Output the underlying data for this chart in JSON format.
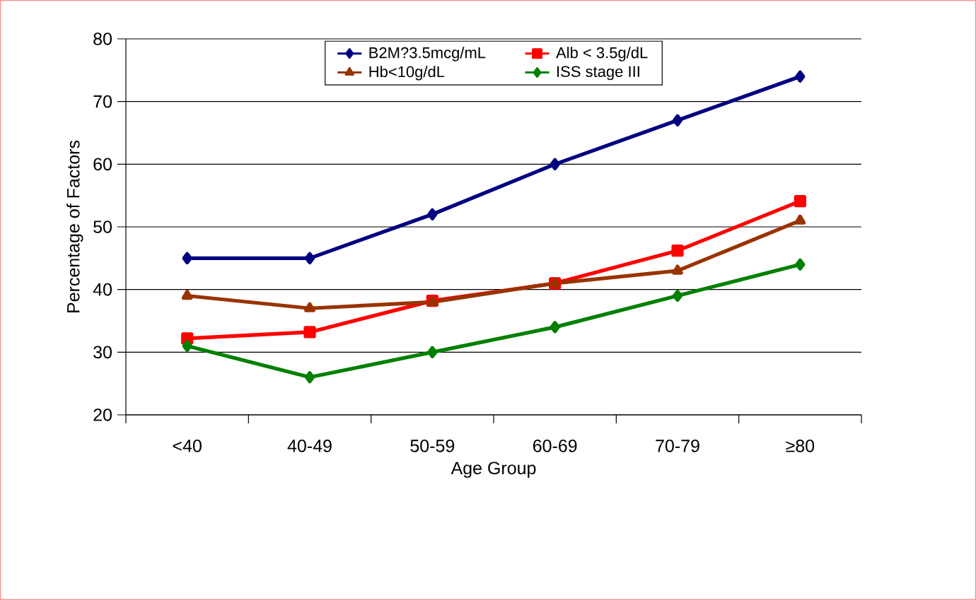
{
  "chart_data": {
    "type": "line",
    "xlabel": "Age Group",
    "ylabel": "Percentage of Factors",
    "categories": [
      "<40",
      "40-49",
      "50-59",
      "60-69",
      "70-79",
      "≥80"
    ],
    "series": [
      {
        "name": "B2M?3.5mcg/mL",
        "color": "#000080",
        "marker": "diamond",
        "values": [
          45,
          45,
          52,
          60,
          67,
          74
        ]
      },
      {
        "name": "Alb < 3.5g/dL",
        "color": "#ff0000",
        "marker": "square",
        "values": [
          32.2,
          33.2,
          38.2,
          41,
          46.2,
          54.1
        ]
      },
      {
        "name": "Hb<10g/dL",
        "color": "#993300",
        "marker": "triangle",
        "values": [
          39,
          37,
          38,
          41,
          43,
          51
        ]
      },
      {
        "name": "ISS stage III",
        "color": "#008000",
        "marker": "diamond",
        "values": [
          31,
          26,
          30,
          34,
          39,
          44
        ]
      }
    ],
    "ylim": [
      20,
      80
    ],
    "yticks": [
      20,
      30,
      40,
      50,
      60,
      70,
      80
    ],
    "grid": "y",
    "legend": "top",
    "line_style": "solid"
  }
}
